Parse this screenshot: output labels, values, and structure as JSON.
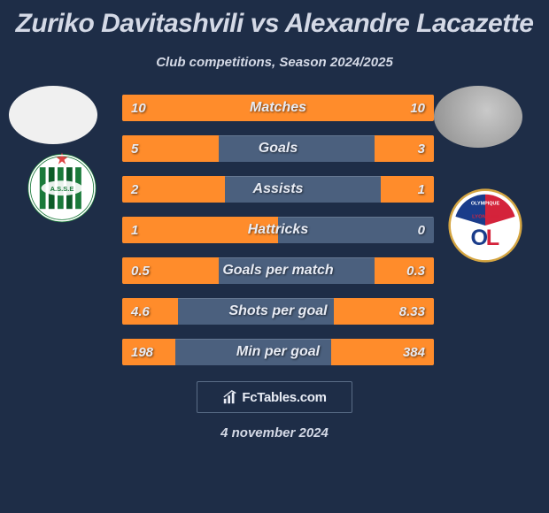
{
  "title": "Zuriko Davitashvili vs Alexandre Lacazette",
  "subtitle": "Club competitions, Season 2024/2025",
  "date": "4 november 2024",
  "footer_brand": "FcTables.com",
  "colors": {
    "bg": "#1e2d47",
    "bar_fill": "#ff8c2b",
    "bar_track": "#4b607e",
    "text": "#d4d9e6",
    "border": "#5a6d87"
  },
  "stats": [
    {
      "label": "Matches",
      "left_val": "10",
      "right_val": "10",
      "left_pct": 50,
      "right_pct": 50
    },
    {
      "label": "Goals",
      "left_val": "5",
      "right_val": "3",
      "left_pct": 31,
      "right_pct": 19
    },
    {
      "label": "Assists",
      "left_val": "2",
      "right_val": "1",
      "left_pct": 33,
      "right_pct": 17
    },
    {
      "label": "Hattricks",
      "left_val": "1",
      "right_val": "0",
      "left_pct": 50,
      "right_pct": 0
    },
    {
      "label": "Goals per match",
      "left_val": "0.5",
      "right_val": "0.3",
      "left_pct": 31,
      "right_pct": 19
    },
    {
      "label": "Shots per goal",
      "left_val": "4.6",
      "right_val": "8.33",
      "left_pct": 18,
      "right_pct": 32
    },
    {
      "label": "Min per goal",
      "left_val": "198",
      "right_val": "384",
      "left_pct": 17,
      "right_pct": 33
    }
  ],
  "left_club": {
    "name": "Saint-Etienne",
    "bg": "#ffffff",
    "accent": "#1a7a3a",
    "stripe": "#0d5c28"
  },
  "right_club": {
    "name": "Olympique Lyonnais",
    "bg": "#ffffff",
    "red": "#d4233b",
    "blue": "#1a3c8a",
    "gold": "#d4a542"
  }
}
